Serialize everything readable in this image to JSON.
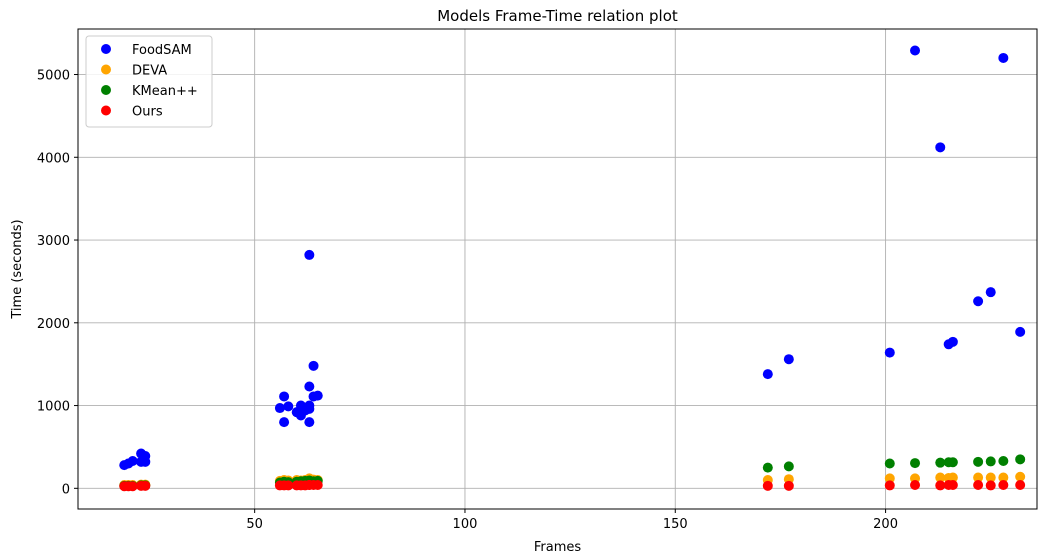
{
  "chart_data": {
    "type": "scatter",
    "title": "Models Frame-Time relation plot",
    "xlabel": "Frames",
    "ylabel": "Time (seconds)",
    "xlim": [
      8,
      236
    ],
    "ylim": [
      -250,
      5550
    ],
    "xticks": [
      50,
      100,
      150,
      200
    ],
    "yticks": [
      0,
      1000,
      2000,
      3000,
      4000,
      5000
    ],
    "grid": true,
    "legend_position": "top-left",
    "series": [
      {
        "name": "FoodSAM",
        "color": "#0000ff",
        "points": [
          [
            19,
            280
          ],
          [
            20,
            300
          ],
          [
            21,
            330
          ],
          [
            23,
            320
          ],
          [
            23,
            420
          ],
          [
            24,
            390
          ],
          [
            24,
            320
          ],
          [
            56,
            970
          ],
          [
            57,
            1110
          ],
          [
            57,
            800
          ],
          [
            58,
            990
          ],
          [
            60,
            920
          ],
          [
            61,
            880
          ],
          [
            61,
            1000
          ],
          [
            62,
            940
          ],
          [
            63,
            1000
          ],
          [
            63,
            1230
          ],
          [
            63,
            960
          ],
          [
            63,
            800
          ],
          [
            63,
            2820
          ],
          [
            64,
            1480
          ],
          [
            64,
            1110
          ],
          [
            65,
            1120
          ],
          [
            172,
            1380
          ],
          [
            177,
            1560
          ],
          [
            201,
            1640
          ],
          [
            207,
            5290
          ],
          [
            213,
            4120
          ],
          [
            215,
            1740
          ],
          [
            216,
            1770
          ],
          [
            222,
            2260
          ],
          [
            225,
            2370
          ],
          [
            228,
            5200
          ],
          [
            232,
            1890
          ]
        ]
      },
      {
        "name": "DEVA",
        "color": "#ffa500",
        "points": [
          [
            19,
            40
          ],
          [
            20,
            40
          ],
          [
            21,
            40
          ],
          [
            23,
            45
          ],
          [
            24,
            45
          ],
          [
            56,
            90
          ],
          [
            57,
            100
          ],
          [
            58,
            95
          ],
          [
            60,
            100
          ],
          [
            61,
            95
          ],
          [
            62,
            100
          ],
          [
            63,
            110
          ],
          [
            63,
            120
          ],
          [
            64,
            105
          ],
          [
            65,
            100
          ],
          [
            172,
            100
          ],
          [
            177,
            110
          ],
          [
            201,
            120
          ],
          [
            207,
            120
          ],
          [
            213,
            130
          ],
          [
            215,
            125
          ],
          [
            216,
            130
          ],
          [
            222,
            130
          ],
          [
            225,
            130
          ],
          [
            228,
            130
          ],
          [
            232,
            140
          ]
        ]
      },
      {
        "name": "KMean++",
        "color": "#008000",
        "points": [
          [
            19,
            30
          ],
          [
            20,
            30
          ],
          [
            21,
            30
          ],
          [
            23,
            35
          ],
          [
            24,
            35
          ],
          [
            56,
            70
          ],
          [
            57,
            80
          ],
          [
            58,
            75
          ],
          [
            60,
            80
          ],
          [
            61,
            85
          ],
          [
            62,
            90
          ],
          [
            63,
            90
          ],
          [
            63,
            95
          ],
          [
            64,
            85
          ],
          [
            65,
            90
          ],
          [
            172,
            250
          ],
          [
            177,
            265
          ],
          [
            201,
            300
          ],
          [
            207,
            305
          ],
          [
            213,
            310
          ],
          [
            215,
            315
          ],
          [
            216,
            315
          ],
          [
            222,
            320
          ],
          [
            225,
            325
          ],
          [
            228,
            330
          ],
          [
            232,
            350
          ]
        ]
      },
      {
        "name": "Ours",
        "color": "#ff0000",
        "points": [
          [
            19,
            25
          ],
          [
            20,
            25
          ],
          [
            21,
            25
          ],
          [
            23,
            30
          ],
          [
            24,
            30
          ],
          [
            56,
            35
          ],
          [
            57,
            35
          ],
          [
            58,
            35
          ],
          [
            60,
            35
          ],
          [
            61,
            35
          ],
          [
            62,
            35
          ],
          [
            63,
            40
          ],
          [
            63,
            40
          ],
          [
            64,
            40
          ],
          [
            65,
            40
          ],
          [
            172,
            30
          ],
          [
            177,
            30
          ],
          [
            201,
            35
          ],
          [
            207,
            40
          ],
          [
            213,
            35
          ],
          [
            215,
            40
          ],
          [
            216,
            40
          ],
          [
            222,
            40
          ],
          [
            225,
            35
          ],
          [
            228,
            40
          ],
          [
            232,
            40
          ]
        ]
      }
    ]
  }
}
